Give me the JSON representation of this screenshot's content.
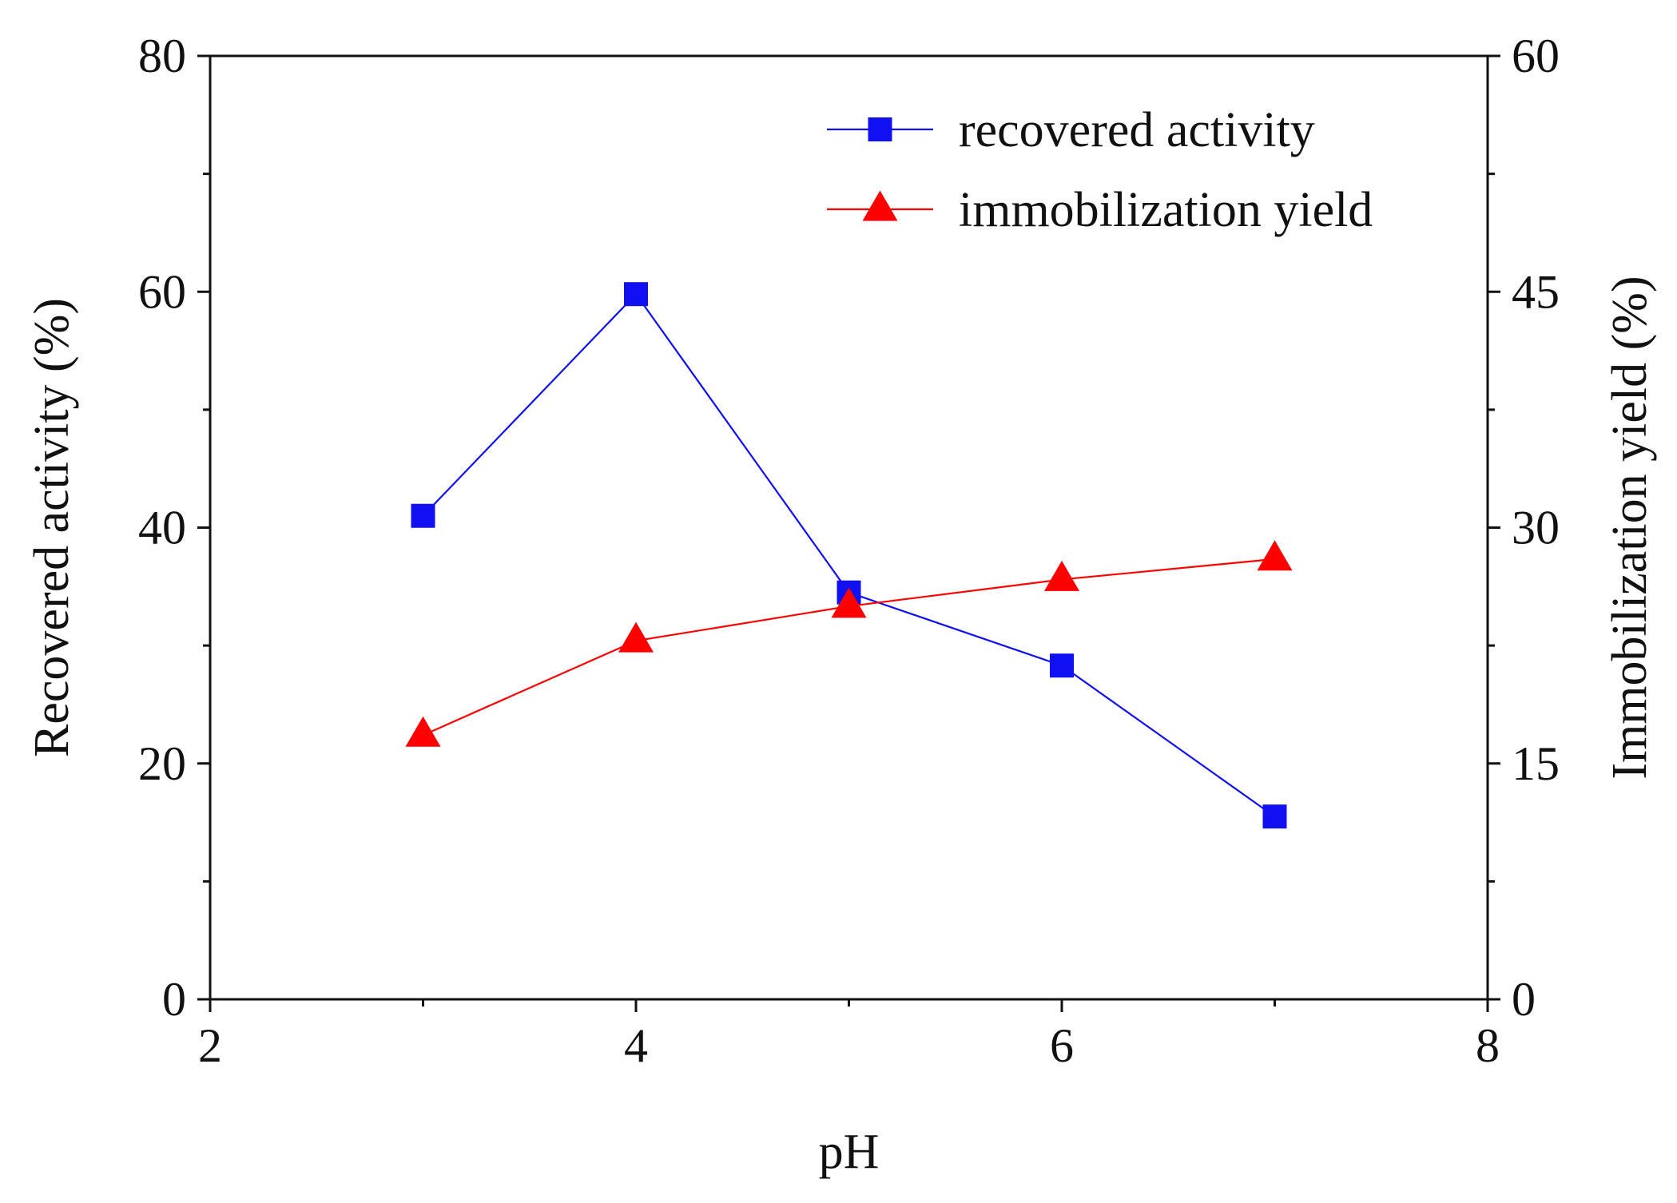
{
  "chart_data": {
    "type": "line",
    "title": "",
    "xlabel": "pH",
    "ylabel_left": "Recovered activity (%)",
    "ylabel_right": "Immobilization yield (%)",
    "xlim": [
      2,
      8
    ],
    "ylim_left": [
      0,
      80
    ],
    "ylim_right": [
      0,
      60
    ],
    "x_ticks": [
      2,
      4,
      6,
      8
    ],
    "x_minor_ticks": [
      3,
      5,
      7
    ],
    "y_left_ticks": [
      0,
      20,
      40,
      60,
      80
    ],
    "y_left_minor_ticks": [
      10,
      30,
      50,
      70
    ],
    "y_right_ticks": [
      0,
      15,
      30,
      45,
      60
    ],
    "y_right_minor_ticks": [
      7.5,
      22.5,
      37.5,
      52.5
    ],
    "legend_position": "top-right",
    "series": [
      {
        "name": "recovered activity",
        "axis": "left",
        "color": "#1010f0",
        "marker": "square",
        "x": [
          3,
          4,
          5,
          6,
          7
        ],
        "values": [
          41.0,
          59.8,
          34.5,
          28.3,
          15.5
        ]
      },
      {
        "name": "immobilization yield",
        "axis": "right",
        "color": "#ff0000",
        "marker": "triangle",
        "x": [
          3,
          4,
          5,
          6,
          7
        ],
        "values": [
          16.8,
          22.8,
          25.0,
          26.7,
          28.0
        ]
      }
    ]
  }
}
